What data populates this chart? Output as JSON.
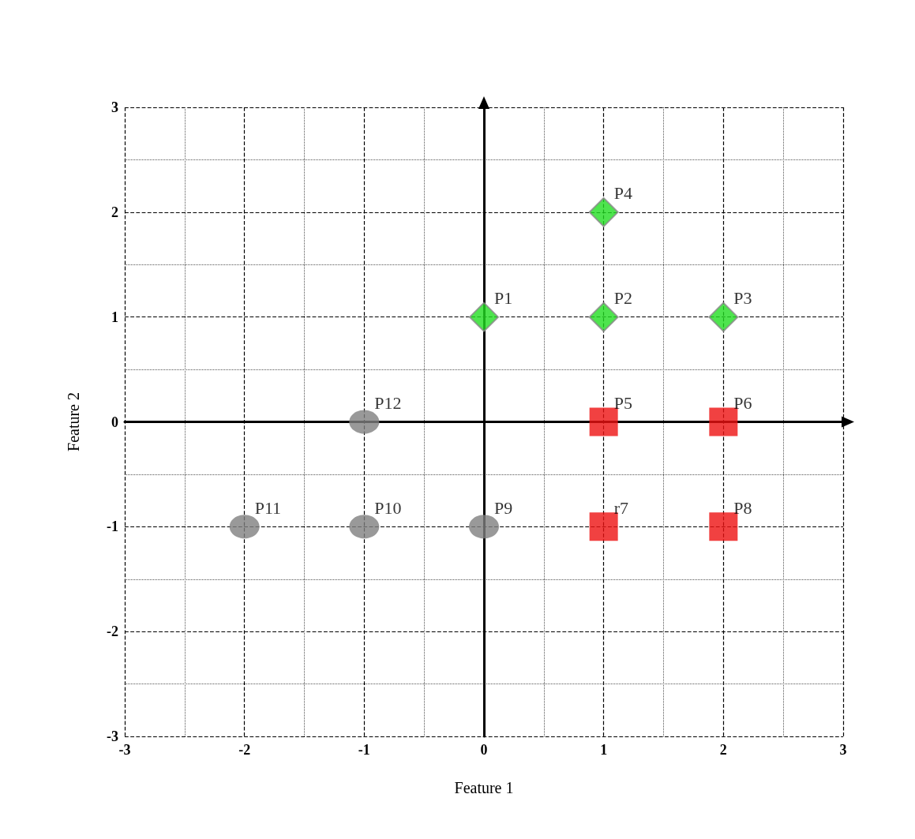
{
  "chart_data": {
    "type": "scatter",
    "xlabel": "Feature 1",
    "ylabel": "Feature 2",
    "xlim": [
      -3,
      3
    ],
    "ylim": [
      -3,
      3
    ],
    "xticks": [
      -3,
      -2,
      -1,
      0,
      1,
      2,
      3
    ],
    "yticks": [
      -3,
      -2,
      -1,
      0,
      1,
      2,
      3
    ],
    "grid": true,
    "series": [
      {
        "color": "#22dd22",
        "marker": "diamond",
        "x": [
          0,
          1,
          2,
          1
        ],
        "values": [
          1,
          1,
          1,
          2
        ]
      },
      {
        "color": "#ee1111",
        "marker": "square",
        "x": [
          1,
          2,
          1,
          2
        ],
        "values": [
          0,
          0,
          -1,
          -1
        ]
      },
      {
        "color": "#808080",
        "marker": "circle",
        "x": [
          0,
          -1,
          -2,
          -1
        ],
        "values": [
          -1,
          -1,
          -1,
          0
        ]
      }
    ],
    "annotations": [
      {
        "text": "P1",
        "x": 0,
        "y": 1
      },
      {
        "text": "P2",
        "x": 1,
        "y": 1
      },
      {
        "text": "P3",
        "x": 2,
        "y": 1
      },
      {
        "text": "P4",
        "x": 1,
        "y": 2
      },
      {
        "text": "P5",
        "x": 1,
        "y": 0
      },
      {
        "text": "P6",
        "x": 2,
        "y": 0
      },
      {
        "text": "r7",
        "x": 1,
        "y": -1
      },
      {
        "text": "P8",
        "x": 2,
        "y": -1
      },
      {
        "text": "P9",
        "x": 0,
        "y": -1
      },
      {
        "text": "P10",
        "x": -1,
        "y": -1
      },
      {
        "text": "P11",
        "x": -2,
        "y": -1
      },
      {
        "text": "P12",
        "x": -1,
        "y": 0
      }
    ]
  }
}
